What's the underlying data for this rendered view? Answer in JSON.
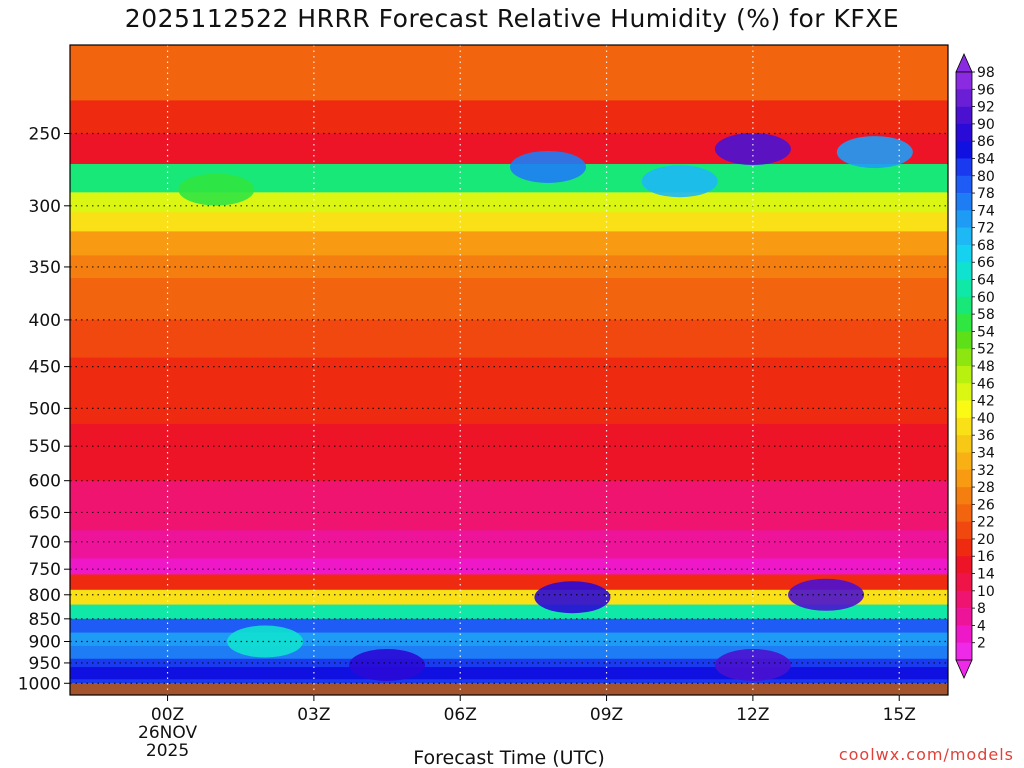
{
  "chart_data": {
    "type": "heatmap",
    "title": "2025112522 HRRR Forecast Relative Humidity (%) for KFXE",
    "xlabel": "Forecast Time (UTC)",
    "ylabel": "",
    "x_tick_labels": [
      "00Z",
      "03Z",
      "06Z",
      "09Z",
      "12Z",
      "15Z"
    ],
    "x_tick_hours": [
      0,
      3,
      6,
      9,
      12,
      15
    ],
    "x_date_label": [
      "26NOV",
      "2025"
    ],
    "xlim_hours": [
      -2,
      16
    ],
    "y_tick_labels": [
      "250",
      "300",
      "350",
      "400",
      "450",
      "500",
      "550",
      "600",
      "650",
      "700",
      "750",
      "800",
      "850",
      "900",
      "950",
      "1000"
    ],
    "y_tick_values": [
      250,
      300,
      350,
      400,
      450,
      500,
      550,
      600,
      650,
      700,
      750,
      800,
      850,
      900,
      950,
      1000
    ],
    "ylim_hpa": [
      200,
      1030
    ],
    "y_scale": "log",
    "grid": true,
    "colorbar_levels": [
      "98",
      "96",
      "92",
      "90",
      "86",
      "84",
      "80",
      "78",
      "74",
      "72",
      "68",
      "66",
      "64",
      "60",
      "58",
      "54",
      "52",
      "48",
      "46",
      "42",
      "40",
      "36",
      "34",
      "32",
      "28",
      "26",
      "22",
      "20",
      "16",
      "14",
      "10",
      "8",
      "4",
      "2"
    ],
    "colorbar_colors": [
      "#8a2be2",
      "#6a1fd6",
      "#4a12d0",
      "#2a0ad6",
      "#1010e0",
      "#1a3af0",
      "#1e5cf5",
      "#1e7df5",
      "#1e9cf5",
      "#1eb8f5",
      "#14d2f0",
      "#10e2d0",
      "#10e8a8",
      "#18e878",
      "#30e640",
      "#5ee018",
      "#8ee610",
      "#b8f010",
      "#dcf614",
      "#fafa14",
      "#fae016",
      "#f8c816",
      "#f8b014",
      "#f89a12",
      "#f47e10",
      "#f2640e",
      "#f0480e",
      "#ee2a10",
      "#ee1428",
      "#ee1448",
      "#ee1470",
      "#ee149a",
      "#ee18c8",
      "#ee2ae8"
    ],
    "surface_color": "#a4542c",
    "profile_hpa": [
      200,
      230,
      250,
      270,
      290,
      305,
      320,
      340,
      360,
      400,
      440,
      470,
      520,
      600,
      680,
      730,
      760,
      790,
      820,
      850,
      880,
      910,
      940,
      960,
      990,
      1010
    ],
    "profile_rh": [
      24,
      20,
      16,
      60,
      46,
      40,
      32,
      28,
      26,
      22,
      20,
      18,
      16,
      10,
      6,
      4,
      18,
      40,
      64,
      80,
      74,
      78,
      84,
      86,
      82,
      70
    ],
    "features": [
      {
        "hour": 12.0,
        "hpa": 260,
        "rh": 92
      },
      {
        "hour": 7.8,
        "hpa": 272,
        "rh": 76
      },
      {
        "hour": 10.5,
        "hpa": 282,
        "rh": 72
      },
      {
        "hour": 14.5,
        "hpa": 262,
        "rh": 74
      },
      {
        "hour": 1.0,
        "hpa": 288,
        "rh": 58
      },
      {
        "hour": 8.3,
        "hpa": 805,
        "rh": 90
      },
      {
        "hour": 13.5,
        "hpa": 800,
        "rh": 92
      },
      {
        "hour": 12.0,
        "hpa": 955,
        "rh": 92
      },
      {
        "hour": 4.5,
        "hpa": 955,
        "rh": 90
      },
      {
        "hour": 2.0,
        "hpa": 900,
        "rh": 66
      }
    ]
  },
  "credit": "coolwx.com/models"
}
